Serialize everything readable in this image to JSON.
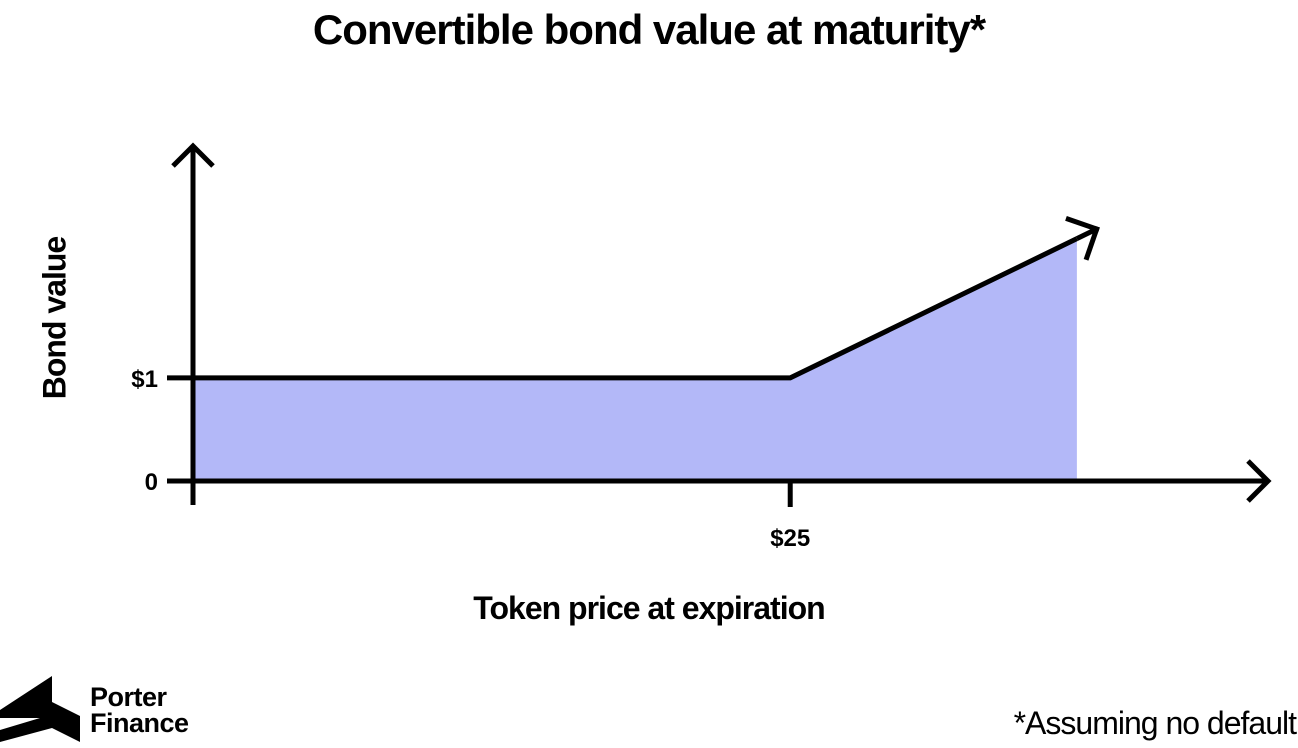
{
  "chart_data": {
    "type": "area",
    "title": "Convertible bond value at maturity*",
    "xlabel": "Token price at expiration",
    "ylabel": "Bond value",
    "x": [
      0,
      25,
      37
    ],
    "y": [
      1,
      1,
      2.35
    ],
    "x_ticks": [
      {
        "value": 25,
        "label": "$25"
      }
    ],
    "y_ticks": [
      {
        "value": 0,
        "label": "0"
      },
      {
        "value": 1,
        "label": "$1"
      }
    ],
    "xlim": [
      0,
      45
    ],
    "ylim": [
      0,
      3.2
    ],
    "fill_color": "#b3b8f8",
    "line_color": "#000000",
    "grid": false,
    "legend": "none"
  },
  "footnote": "*Assuming no default",
  "brand": {
    "line1": "Porter",
    "line2": "Finance",
    "logo_icon": "porter-finance-logo"
  }
}
